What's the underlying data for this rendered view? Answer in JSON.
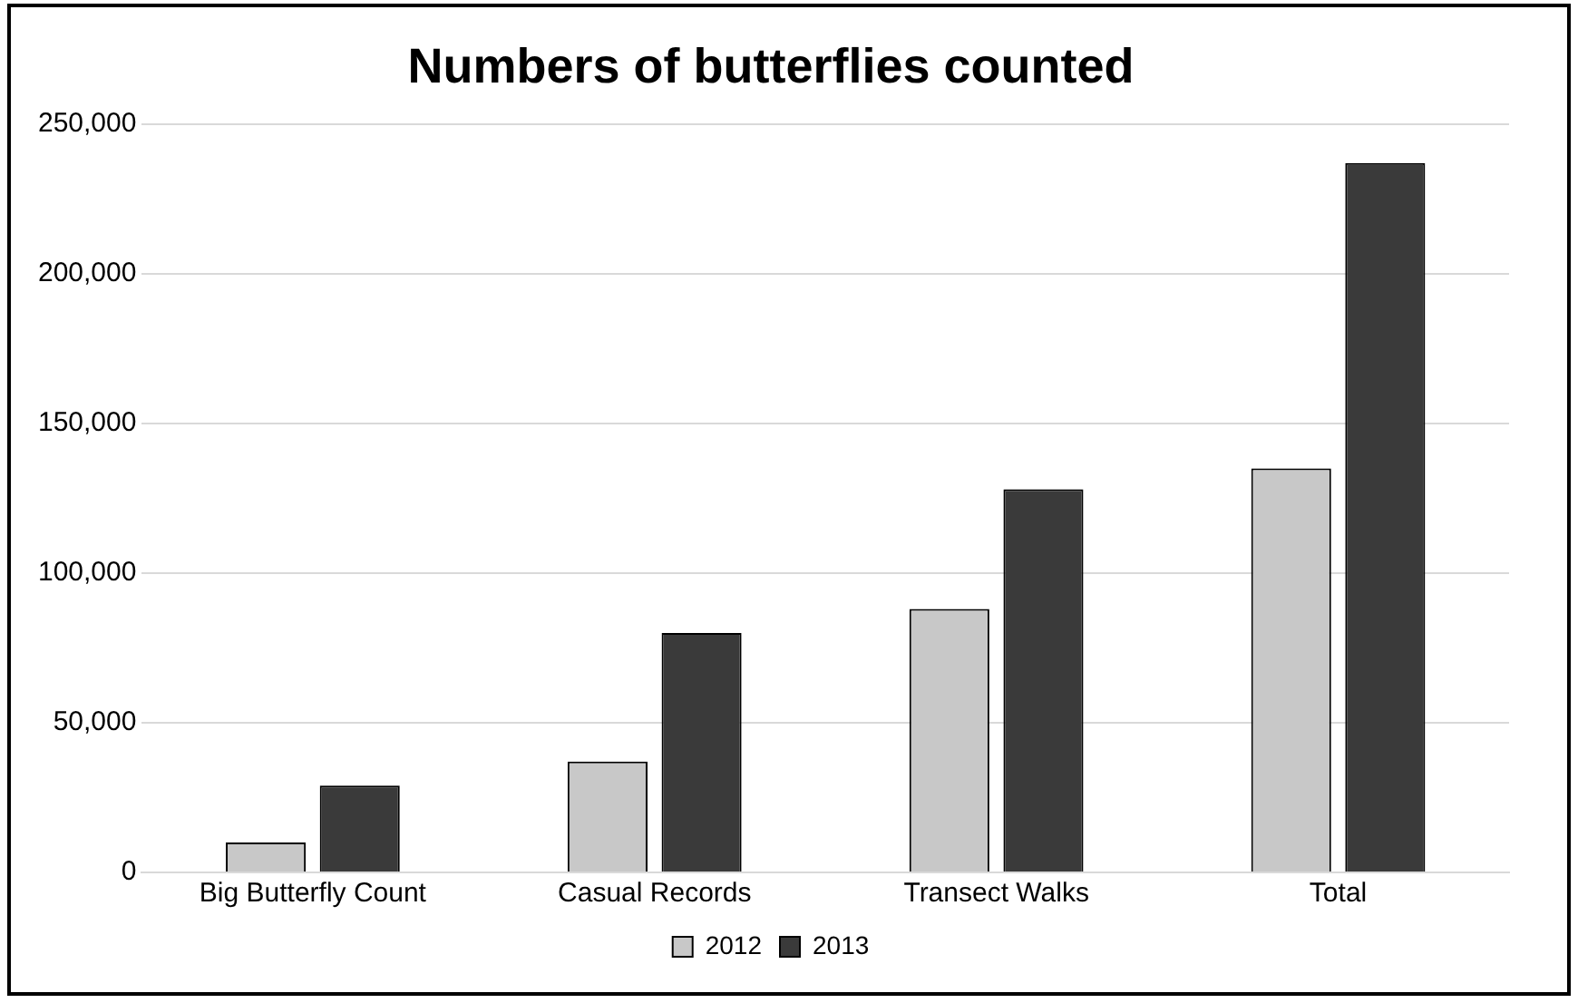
{
  "chart_data": {
    "type": "bar",
    "title": "Numbers of butterflies counted",
    "categories": [
      "Big Butterfly Count",
      "Casual Records",
      "Transect Walks",
      "Total"
    ],
    "series": [
      {
        "name": "2012",
        "color": "#c8c8c8",
        "values": [
          10000,
          37000,
          88000,
          135000
        ]
      },
      {
        "name": "2013",
        "color": "#3a3a3a",
        "values": [
          29000,
          80000,
          128000,
          237000
        ]
      }
    ],
    "ylim": [
      0,
      250000
    ],
    "yticks": [
      {
        "value": 0,
        "label": "0"
      },
      {
        "value": 50000,
        "label": "50,000"
      },
      {
        "value": 100000,
        "label": "100,000"
      },
      {
        "value": 150000,
        "label": "150,000"
      },
      {
        "value": 200000,
        "label": "200,000"
      },
      {
        "value": 250000,
        "label": "250,000"
      }
    ],
    "grid": "y",
    "legend": "bottom"
  }
}
